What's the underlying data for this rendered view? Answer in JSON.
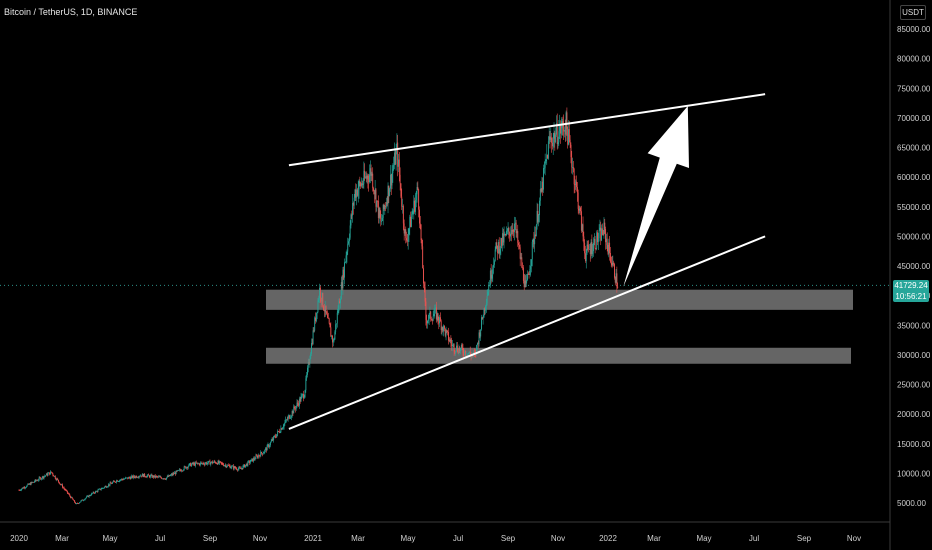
{
  "header": {
    "title": "Bitcoin / TetherUS, 1D, BINANCE",
    "currency": "USDT"
  },
  "price_label": {
    "price": "41729.24",
    "countdown": "10:56:21"
  },
  "colors": {
    "up": "#26a69a",
    "down": "#ef5350",
    "background": "#000000",
    "zone": "#8c8c8c",
    "line": "#ffffff"
  },
  "chart_data": {
    "type": "candlestick",
    "title": "Bitcoin / TetherUS, 1D, BINANCE",
    "y_ticks": [
      "85000.00",
      "80000.00",
      "75000.00",
      "70000.00",
      "65000.00",
      "60000.00",
      "55000.00",
      "50000.00",
      "45000.00",
      "40000.00",
      "35000.00",
      "30000.00",
      "25000.00",
      "20000.00",
      "15000.00",
      "10000.00",
      "5000.00"
    ],
    "x_ticks": [
      "2020",
      "Mar",
      "May",
      "Jul",
      "Sep",
      "Nov",
      "2021",
      "Mar",
      "May",
      "Jul",
      "Sep",
      "Nov",
      "2022",
      "Mar",
      "May",
      "Jul",
      "Sep",
      "Nov"
    ],
    "ylim": [
      2000,
      87000
    ],
    "last_price": 41729.24,
    "price_path": [
      [
        "2020-01-01",
        7200
      ],
      [
        "2020-02-10",
        10200
      ],
      [
        "2020-03-12",
        4800
      ],
      [
        "2020-04-01",
        6600
      ],
      [
        "2020-05-01",
        8800
      ],
      [
        "2020-06-01",
        9700
      ],
      [
        "2020-07-01",
        9200
      ],
      [
        "2020-08-01",
        11500
      ],
      [
        "2020-09-01",
        11900
      ],
      [
        "2020-10-01",
        10700
      ],
      [
        "2020-11-01",
        13800
      ],
      [
        "2020-12-01",
        19500
      ],
      [
        "2020-12-20",
        23500
      ],
      [
        "2021-01-08",
        41000
      ],
      [
        "2021-01-25",
        32000
      ],
      [
        "2021-02-21",
        57500
      ],
      [
        "2021-03-13",
        61000
      ],
      [
        "2021-03-25",
        52000
      ],
      [
        "2021-04-14",
        64500
      ],
      [
        "2021-04-25",
        49000
      ],
      [
        "2021-05-10",
        58000
      ],
      [
        "2021-05-20",
        36000
      ],
      [
        "2021-06-01",
        37000
      ],
      [
        "2021-06-22",
        31500
      ],
      [
        "2021-07-20",
        29800
      ],
      [
        "2021-08-14",
        47500
      ],
      [
        "2021-09-07",
        52000
      ],
      [
        "2021-09-21",
        41000
      ],
      [
        "2021-10-20",
        66000
      ],
      [
        "2021-11-10",
        69000
      ],
      [
        "2021-11-25",
        56000
      ],
      [
        "2021-12-04",
        47000
      ],
      [
        "2021-12-27",
        51000
      ],
      [
        "2022-01-13",
        41729
      ]
    ],
    "support_zones": [
      {
        "top": 41000,
        "bottom": 37600
      },
      {
        "top": 31200,
        "bottom": 28500
      }
    ],
    "trendlines": [
      {
        "from": [
          "2020-12-01",
          62000
        ],
        "to": [
          "2022-07-15",
          74000
        ]
      },
      {
        "from": [
          "2020-12-01",
          17500
        ],
        "to": [
          "2022-07-15",
          50000
        ]
      }
    ],
    "arrow": {
      "from": [
        "2022-01-20",
        41500
      ],
      "to": [
        "2022-04-10",
        72000
      ]
    }
  }
}
